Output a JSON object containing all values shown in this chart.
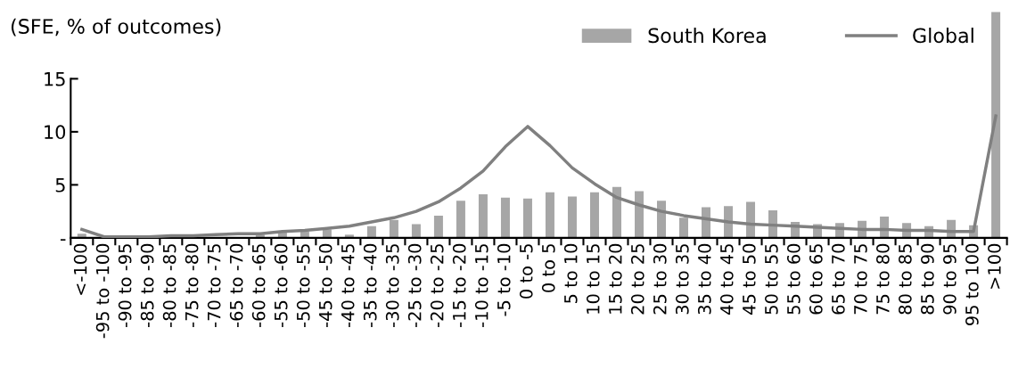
{
  "chart_data": {
    "type": "bar",
    "ylabel": "(SFE, % of outcomes)",
    "categories": [
      "<-100",
      "-95 to -100",
      "-90 to -95",
      "-85 to -90",
      "-80 to -85",
      "-75 to -80",
      "-70 to -75",
      "-65 to -70",
      "-60 to -65",
      "-55 to -60",
      "-50 to -55",
      "-45 to -50",
      "-40 to -45",
      "-35 to -40",
      "-30 to -35",
      "-25 to -30",
      "-20 to -25",
      "-15 to -20",
      "-10 to -15",
      "-5 to -10",
      "0 to -5",
      "0 to 5",
      "5 to 10",
      "10 to 15",
      "15 to 20",
      "20 to 25",
      "25 to 30",
      "30 to 35",
      "35 to 40",
      "40 to 45",
      "45 to 50",
      "50 to 55",
      "55 to 60",
      "60 to 65",
      "65 to 70",
      "70 to 75",
      "75 to 80",
      "80 to 85",
      "85 to 90",
      "90 to 95",
      "95 to 100",
      ">100"
    ],
    "series": [
      {
        "name": "South Korea",
        "color": "#a6a6a6",
        "values": [
          0.4,
          0.1,
          0.1,
          0.1,
          0.1,
          0.1,
          null,
          null,
          0.3,
          0.5,
          0.6,
          0.8,
          0.3,
          1.1,
          1.7,
          1.3,
          2.1,
          3.5,
          4.1,
          3.8,
          3.7,
          4.3,
          3.9,
          4.3,
          4.8,
          4.4,
          3.5,
          1.9,
          2.9,
          3.0,
          3.4,
          2.6,
          1.5,
          1.3,
          1.4,
          1.6,
          2.0,
          1.4,
          1.1,
          1.7,
          1.2,
          21.3
        ]
      },
      {
        "name": "Global",
        "type": "line",
        "color": "#808080",
        "values": [
          0.8,
          0.1,
          0.1,
          0.1,
          0.2,
          0.2,
          0.3,
          0.4,
          0.4,
          0.6,
          0.7,
          0.9,
          1.1,
          1.5,
          1.9,
          2.5,
          3.4,
          4.7,
          6.3,
          8.6,
          10.5,
          8.7,
          6.6,
          5.1,
          3.8,
          3.1,
          2.5,
          2.1,
          1.8,
          1.5,
          1.3,
          1.2,
          1.1,
          1.0,
          0.9,
          0.8,
          0.8,
          0.7,
          0.7,
          0.6,
          0.6,
          11.5
        ]
      }
    ],
    "ylim": [
      0,
      21.5
    ],
    "yticks": [
      {
        "value": 0,
        "label": "-"
      },
      5,
      10,
      15
    ],
    "grid": false,
    "legend": "top right",
    "line_style": "solid",
    "marker": "none"
  }
}
